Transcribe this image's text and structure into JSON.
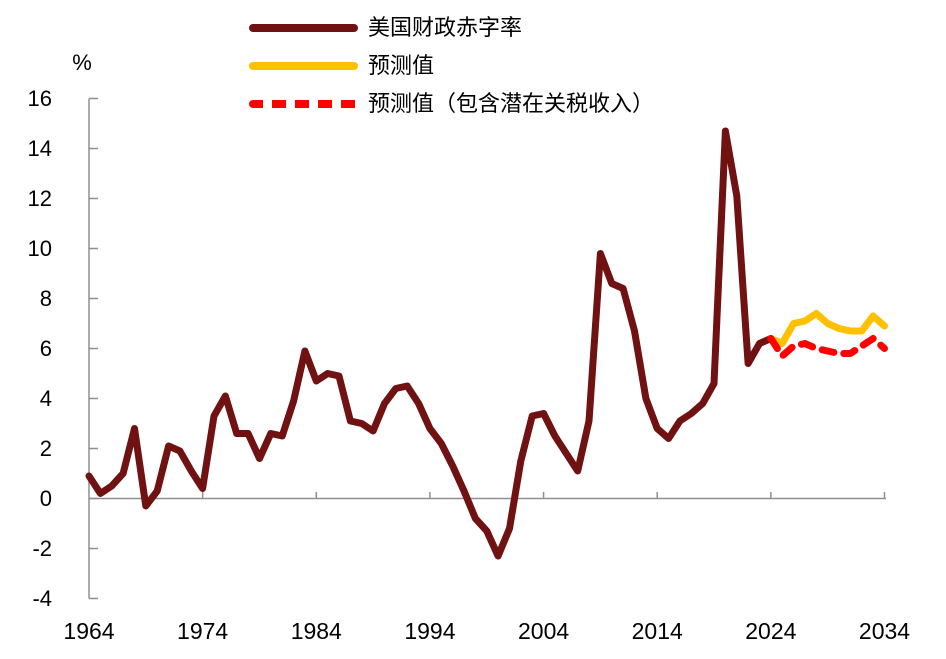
{
  "chart_data": {
    "type": "line",
    "unit_label": "%",
    "xlim": [
      1964,
      2034
    ],
    "ylim": [
      -4,
      16
    ],
    "x_ticks": [
      1964,
      1974,
      1984,
      1994,
      2004,
      2014,
      2024,
      2034
    ],
    "y_ticks": [
      16,
      14,
      12,
      10,
      8,
      6,
      4,
      2,
      0,
      -2,
      -4
    ],
    "grid": "zero-line-only",
    "legend_position": "top-left",
    "axis_color": "#8F8F8F",
    "text_color": "#000000",
    "series": [
      {
        "name": "美国财政赤字率",
        "color": "#701112",
        "style": "solid",
        "x_start": 1964,
        "values": [
          0.9,
          0.2,
          0.5,
          1.0,
          2.8,
          -0.3,
          0.3,
          2.1,
          1.9,
          1.1,
          0.4,
          3.3,
          4.1,
          2.6,
          2.6,
          1.6,
          2.6,
          2.5,
          3.9,
          5.9,
          4.7,
          5.0,
          4.9,
          3.1,
          3.0,
          2.7,
          3.8,
          4.4,
          4.5,
          3.8,
          2.8,
          2.2,
          1.3,
          0.3,
          -0.8,
          -1.3,
          -2.3,
          -1.2,
          1.5,
          3.3,
          3.4,
          2.5,
          1.8,
          1.1,
          3.1,
          9.8,
          8.6,
          8.4,
          6.7,
          4.0,
          2.8,
          2.4,
          3.1,
          3.4,
          3.8,
          4.6,
          14.7,
          12.1,
          5.4,
          6.2,
          6.4
        ]
      },
      {
        "name": "预测值",
        "color": "#FFC000",
        "style": "solid",
        "x_start": 2024,
        "values": [
          6.4,
          6.2,
          7.0,
          7.1,
          7.4,
          7.0,
          6.8,
          6.7,
          6.7,
          7.3,
          6.9
        ]
      },
      {
        "name": "预测值（包含潜在关税收入）",
        "color": "#FF0000",
        "style": "dashed",
        "x_start": 2024,
        "values": [
          6.4,
          5.7,
          6.1,
          6.2,
          6.0,
          5.9,
          5.8,
          5.8,
          6.1,
          6.4,
          6.0
        ]
      }
    ]
  }
}
